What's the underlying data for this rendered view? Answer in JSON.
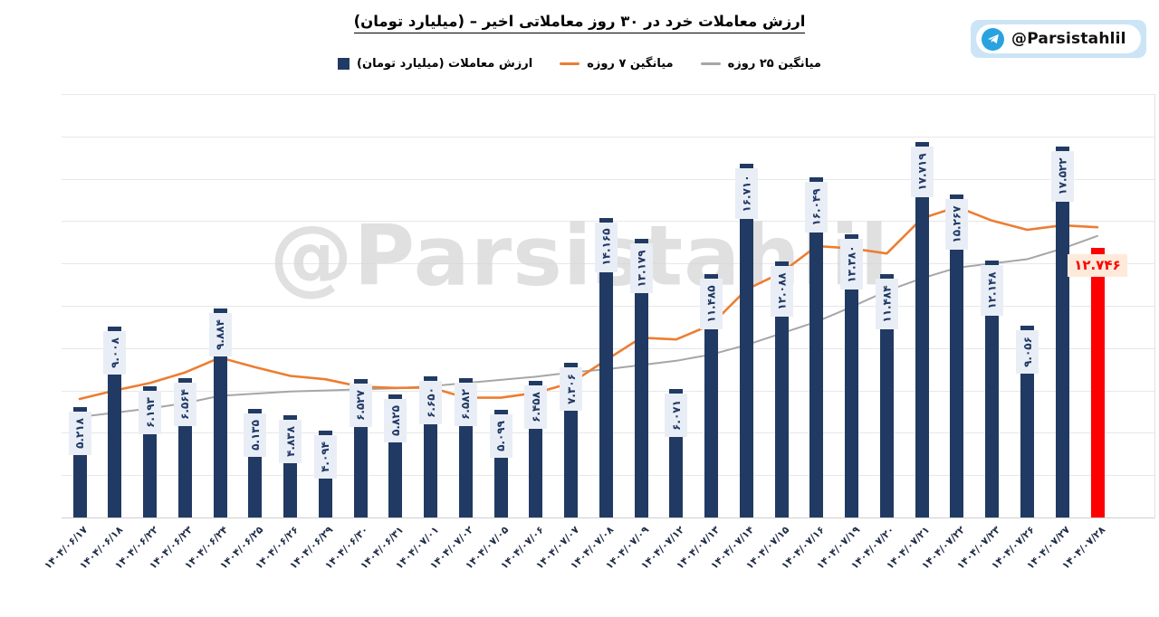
{
  "title": "ارزش معاملات خرد در ۳۰ روز معاملاتی اخیر – (میلیارد تومان)",
  "badge": {
    "label": "@Parsistahlil",
    "icon": "telegram-icon"
  },
  "watermark": "@Parsistahlil",
  "legend": [
    {
      "swatch": "bar",
      "color": "#213a63",
      "label": "ارزش معاملات (میلیارد تومان)"
    },
    {
      "swatch": "line",
      "color": "#ed7d31",
      "label": "میانگین ۷ روزه"
    },
    {
      "swatch": "line",
      "color": "#a6a6a6",
      "label": "میانگین ۲۵ روزه"
    }
  ],
  "chart_data": {
    "type": "bar",
    "title": "ارزش معاملات خرد در ۳۰ روز معاملاتی اخیر – (میلیارد تومان)",
    "xlabel": "",
    "ylabel": "میلیارد تومان",
    "ylim": [
      0,
      20
    ],
    "grid": true,
    "y_axis_labels_visible": false,
    "legend_position": "top",
    "categories": [
      "۱۴۰۴/۰۶/۱۷",
      "۱۴۰۴/۰۶/۱۸",
      "۱۴۰۴/۰۶/۲۲",
      "۱۴۰۴/۰۶/۲۳",
      "۱۴۰۴/۰۶/۲۴",
      "۱۴۰۴/۰۶/۲۵",
      "۱۴۰۴/۰۶/۲۶",
      "۱۴۰۴/۰۶/۲۹",
      "۱۴۰۴/۰۶/۳۰",
      "۱۴۰۴/۰۶/۳۱",
      "۱۴۰۴/۰۷/۰۱",
      "۱۴۰۴/۰۷/۰۲",
      "۱۴۰۴/۰۷/۰۵",
      "۱۴۰۴/۰۷/۰۶",
      "۱۴۰۴/۰۷/۰۷",
      "۱۴۰۴/۰۷/۰۸",
      "۱۴۰۴/۰۷/۰۹",
      "۱۴۰۴/۰۷/۱۲",
      "۱۴۰۴/۰۷/۱۳",
      "۱۴۰۴/۰۷/۱۴",
      "۱۴۰۴/۰۷/۱۵",
      "۱۴۰۴/۰۷/۱۶",
      "۱۴۰۴/۰۷/۱۹",
      "۱۴۰۴/۰۷/۲۰",
      "۱۴۰۴/۰۷/۲۱",
      "۱۴۰۴/۰۷/۲۲",
      "۱۴۰۴/۰۷/۲۳",
      "۱۴۰۴/۰۷/۲۶",
      "۱۴۰۴/۰۷/۲۷",
      "۱۴۰۴/۰۷/۲۸"
    ],
    "series": [
      {
        "name": "ارزش معاملات (میلیارد تومان)",
        "type": "bar",
        "color": "#213a63",
        "values": [
          5.218,
          9.008,
          6.193,
          6.564,
          9.884,
          5.135,
          4.838,
          4.094,
          6.527,
          5.825,
          6.65,
          6.582,
          5.099,
          6.458,
          7.306,
          14.165,
          13.179,
          6.071,
          11.485,
          16.71,
          12.088,
          16.049,
          13.38,
          11.484,
          17.719,
          15.267,
          12.148,
          9.056,
          17.522,
          12.746
        ],
        "labels": [
          "۵.۲۱۸",
          "۹.۰۰۸",
          "۶.۱۹۳",
          "۶.۵۶۴",
          "۹.۸۸۴",
          "۵.۱۳۵",
          "۴.۸۳۸",
          "۴.۰۹۴",
          "۶.۵۲۷",
          "۵.۸۲۵",
          "۶.۶۵۰",
          "۶.۵۸۲",
          "۵.۰۹۹",
          "۶.۴۵۸",
          "۷.۳۰۶",
          "۱۴.۱۶۵",
          "۱۳.۱۷۹",
          "۶.۰۷۱",
          "۱۱.۴۸۵",
          "۱۶.۷۱۰",
          "۱۲.۰۸۸",
          "۱۶.۰۴۹",
          "۱۳.۳۸۰",
          "۱۱.۴۸۴",
          "۱۷.۷۱۹",
          "۱۵.۲۶۷",
          "۱۲.۱۴۸",
          "۹.۰۵۶",
          "۱۷.۵۲۲",
          "۱۲.۷۴۶"
        ]
      },
      {
        "name": "میانگین ۷ روزه",
        "type": "line",
        "color": "#ed7d31",
        "values": [
          5.6,
          6.0,
          6.35,
          6.85,
          7.55,
          7.1,
          6.69,
          6.53,
          6.18,
          6.12,
          6.14,
          5.66,
          5.66,
          5.89,
          6.35,
          7.44,
          8.49,
          8.41,
          9.11,
          10.77,
          11.57,
          12.82,
          12.71,
          12.47,
          14.13,
          14.67,
          14.02,
          13.59,
          13.8,
          13.71
        ]
      },
      {
        "name": "میانگین ۲۵ روزه",
        "type": "line",
        "color": "#a6a6a6",
        "values": [
          4.75,
          4.95,
          5.15,
          5.4,
          5.75,
          5.85,
          5.95,
          6.0,
          6.05,
          6.1,
          6.2,
          6.35,
          6.5,
          6.65,
          6.85,
          7.0,
          7.2,
          7.4,
          7.7,
          8.15,
          8.7,
          9.25,
          9.95,
          10.7,
          11.3,
          11.8,
          12.0,
          12.2,
          12.7,
          13.3
        ]
      }
    ],
    "highlight": {
      "index": 29,
      "bar_color": "#fe0000",
      "label": "۱۲.۷۴۶",
      "label_color": "#fe0000",
      "label_bg": "#fdeada"
    },
    "value_label_bg": "#e9eef6",
    "value_label_color": "#1f3864"
  }
}
